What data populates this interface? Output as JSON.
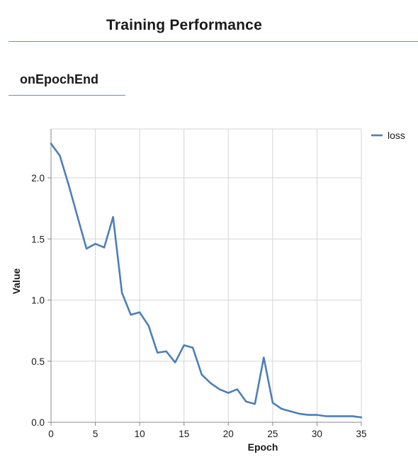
{
  "header": {
    "title": "Training Performance"
  },
  "tabs": [
    {
      "label": "onEpochEnd",
      "selected": true
    }
  ],
  "chart_data": {
    "type": "line",
    "xlabel": "Epoch",
    "ylabel": "Value",
    "xlim": [
      0,
      35
    ],
    "ylim": [
      0,
      2.4
    ],
    "x_ticks": [
      0,
      5,
      10,
      15,
      20,
      25,
      30,
      35
    ],
    "y_ticks": [
      0.0,
      0.5,
      1.0,
      1.5,
      2.0
    ],
    "y_tick_labels": [
      "0.0",
      "0.5",
      "1.0",
      "1.5",
      "2.0"
    ],
    "grid": true,
    "legend_position": "top-right",
    "series": [
      {
        "name": "loss",
        "color": "#4d7fb8",
        "x": [
          0,
          1,
          2,
          3,
          4,
          5,
          6,
          7,
          8,
          9,
          10,
          11,
          12,
          13,
          14,
          15,
          16,
          17,
          18,
          19,
          20,
          21,
          22,
          23,
          24,
          25,
          26,
          27,
          28,
          29,
          30,
          31,
          32,
          33,
          34,
          35
        ],
        "values": [
          2.28,
          2.18,
          1.94,
          1.68,
          1.42,
          1.46,
          1.43,
          1.68,
          1.06,
          0.88,
          0.9,
          0.79,
          0.57,
          0.58,
          0.49,
          0.63,
          0.61,
          0.39,
          0.32,
          0.27,
          0.24,
          0.27,
          0.17,
          0.15,
          0.53,
          0.16,
          0.11,
          0.09,
          0.07,
          0.06,
          0.06,
          0.05,
          0.05,
          0.05,
          0.05,
          0.04
        ]
      }
    ]
  }
}
